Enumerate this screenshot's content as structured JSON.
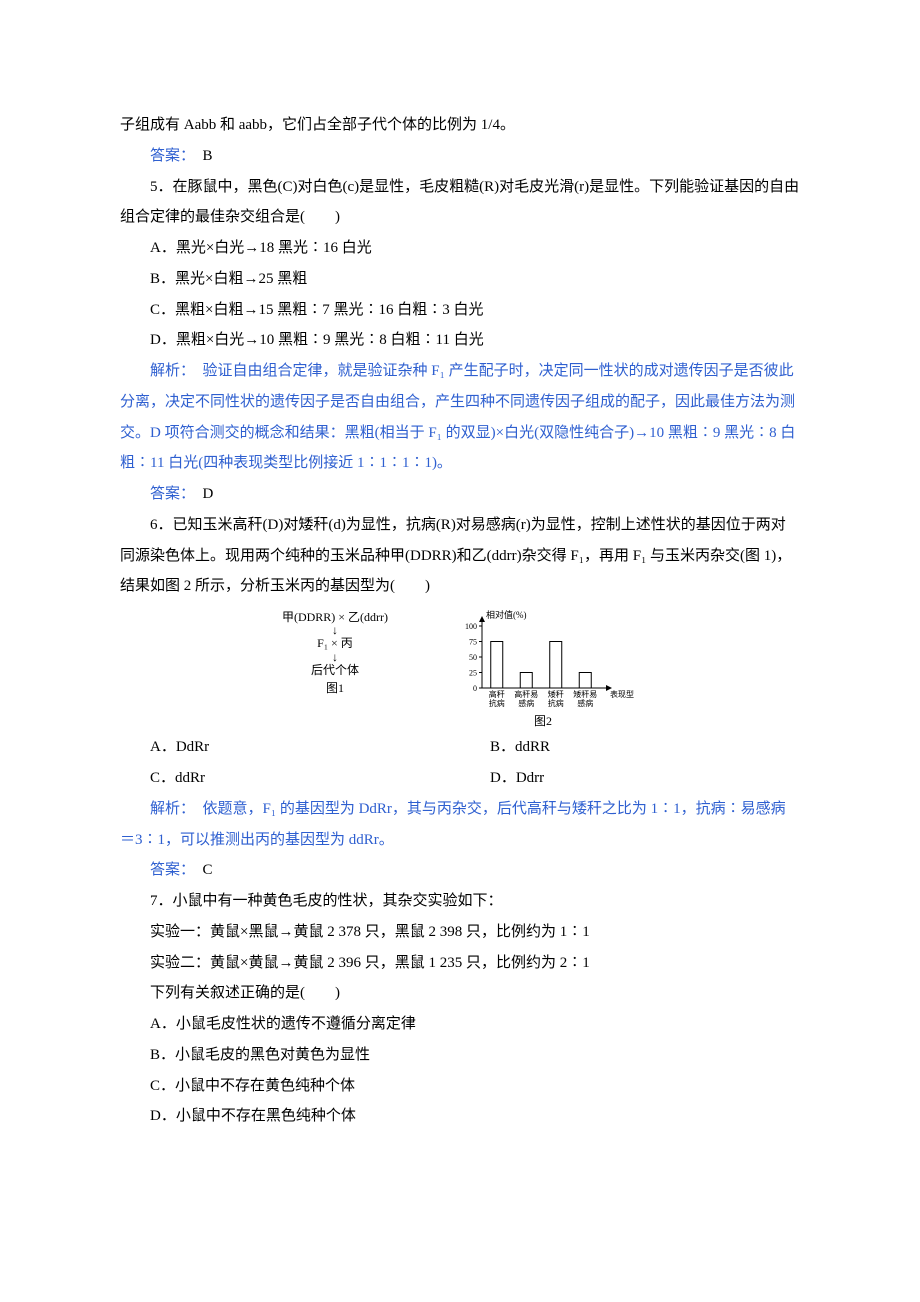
{
  "intro_fragment": "子组成有 Aabb 和 aabb，它们占全部子代个体的比例为 1/4。",
  "answer_label": "答案：　",
  "analysis_label": "解析：　",
  "q4": {
    "answer": "B"
  },
  "q5": {
    "stem": "5．在豚鼠中，黑色(C)对白色(c)是显性，毛皮粗糙(R)对毛皮光滑(r)是显性。下列能验证基因的自由组合定律的最佳杂交组合是(　　)",
    "optA": "A．黑光×白光→18 黑光∶16 白光",
    "optB": "B．黑光×白粗→25 黑粗",
    "optC": "C．黑粗×白粗→15 黑粗∶7 黑光∶16 白粗∶3 白光",
    "optD": "D．黑粗×白光→10 黑粗∶9 黑光∶8 白粗∶11 白光",
    "analysis": "验证自由组合定律，就是验证杂种 F₁ 产生配子时，决定同一性状的成对遗传因子是否彼此分离，决定不同性状的遗传因子是否自由组合，产生四种不同遗传因子组成的配子，因此最佳方法为测交。D 项符合测交的概念和结果：黑粗(相当于 F₁ 的双显)×白光(双隐性纯合子)→10 黑粗∶9 黑光∶8 白粗∶11 白光(四种表现类型比例接近 1∶1∶1∶1)。",
    "answer": "D"
  },
  "q6": {
    "stem": "6．已知玉米高秆(D)对矮秆(d)为显性，抗病(R)对易感病(r)为显性，控制上述性状的基因位于两对同源染色体上。现用两个纯种的玉米品种甲(DDRR)和乙(ddrr)杂交得 F₁，再用 F₁ 与玉米丙杂交(图 1)，结果如图 2 所示，分析玉米丙的基因型为(　　)",
    "fig1": {
      "line1": "甲(DDRR) × 乙(ddrr)",
      "line2": "↓",
      "line3": "F₁ × 丙",
      "line4": "↓",
      "line5": "后代个体",
      "caption": "图1"
    },
    "fig2": {
      "ylabel": "相对值(%)",
      "yticks": [
        0,
        25,
        50,
        75,
        100
      ],
      "categories": [
        {
          "l1": "高秆",
          "l2": "抗病"
        },
        {
          "l1": "高秆易",
          "l2": "感病"
        },
        {
          "l1": "矮秆",
          "l2": "抗病"
        },
        {
          "l1": "矮秆易",
          "l2": "感病"
        }
      ],
      "xlabel": "表现型",
      "values": [
        75,
        25,
        75,
        25
      ],
      "bar_color": "#ffffff",
      "bar_border": "#000000",
      "axis_color": "#000000",
      "caption": "图2"
    },
    "optA": "A．DdRr",
    "optB": "B．ddRR",
    "optC": "C．ddRr",
    "optD": "D．Ddrr",
    "analysis": "依题意，F₁ 的基因型为 DdRr，其与丙杂交，后代高秆与矮秆之比为 1∶1，抗病∶易感病＝3∶1，可以推测出丙的基因型为 ddRr。",
    "answer": "C"
  },
  "q7": {
    "stem": "7．小鼠中有一种黄色毛皮的性状，其杂交实验如下：",
    "exp1": "实验一：黄鼠×黑鼠→黄鼠 2 378 只，黑鼠 2 398 只，比例约为 1∶1",
    "exp2": "实验二：黄鼠×黄鼠→黄鼠 2 396 只，黑鼠 1 235 只，比例约为 2∶1",
    "sub": "下列有关叙述正确的是(　　)",
    "optA": "A．小鼠毛皮性状的遗传不遵循分离定律",
    "optB": "B．小鼠毛皮的黑色对黄色为显性",
    "optC": "C．小鼠中不存在黄色纯种个体",
    "optD": "D．小鼠中不存在黑色纯种个体"
  }
}
